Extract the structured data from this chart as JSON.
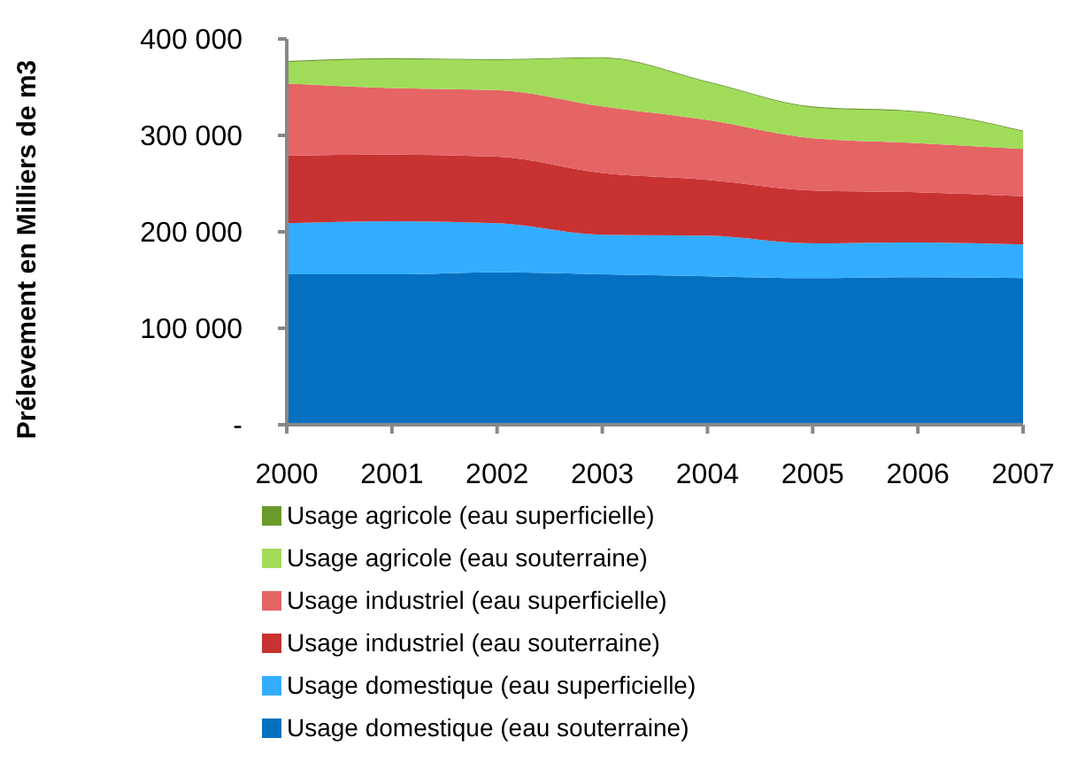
{
  "chart_data": {
    "type": "area",
    "stacked": true,
    "ylabel": "Prélevement en Milliers de m3",
    "x": [
      2000,
      2001,
      2002,
      2003,
      2004,
      2005,
      2006,
      2007
    ],
    "xlim": [
      2000,
      2007
    ],
    "xticks": [
      2000,
      2001,
      2002,
      2003,
      2004,
      2005,
      2006,
      2007
    ],
    "ylim": [
      0,
      400000
    ],
    "yticks": [
      {
        "value": 0,
        "label": "-"
      },
      {
        "value": 100000,
        "label": "100 000"
      },
      {
        "value": 200000,
        "label": "200 000"
      },
      {
        "value": 300000,
        "label": "300 000"
      },
      {
        "value": 400000,
        "label": "400 000"
      }
    ],
    "legend": "bottom",
    "series": [
      {
        "name": "Usage domestique (eau souterraine)",
        "color": "#0670c0",
        "values": [
          156000,
          156000,
          158000,
          156000,
          154000,
          152000,
          153000,
          152000
        ]
      },
      {
        "name": "Usage domestique (eau superficielle)",
        "color": "#33adff",
        "values": [
          53000,
          55000,
          51000,
          41000,
          42000,
          36000,
          36000,
          35000
        ]
      },
      {
        "name": "Usage industriel (eau souterraine)",
        "color": "#c83232",
        "values": [
          70000,
          69000,
          69000,
          64000,
          58000,
          55000,
          52000,
          50000
        ]
      },
      {
        "name": "Usage industriel (eau superficielle)",
        "color": "#e56464",
        "values": [
          75000,
          69000,
          69000,
          69000,
          62000,
          54000,
          51000,
          49000
        ]
      },
      {
        "name": "Usage agricole (eau souterraine)",
        "color": "#a0dc5a",
        "values": [
          22000,
          30000,
          31000,
          50000,
          39000,
          32000,
          32000,
          18000
        ]
      },
      {
        "name": "Usage agricole (eau superficielle)",
        "color": "#6a9a2a",
        "values": [
          1000,
          1000,
          1000,
          1000,
          1000,
          1000,
          1000,
          1000
        ]
      }
    ]
  }
}
